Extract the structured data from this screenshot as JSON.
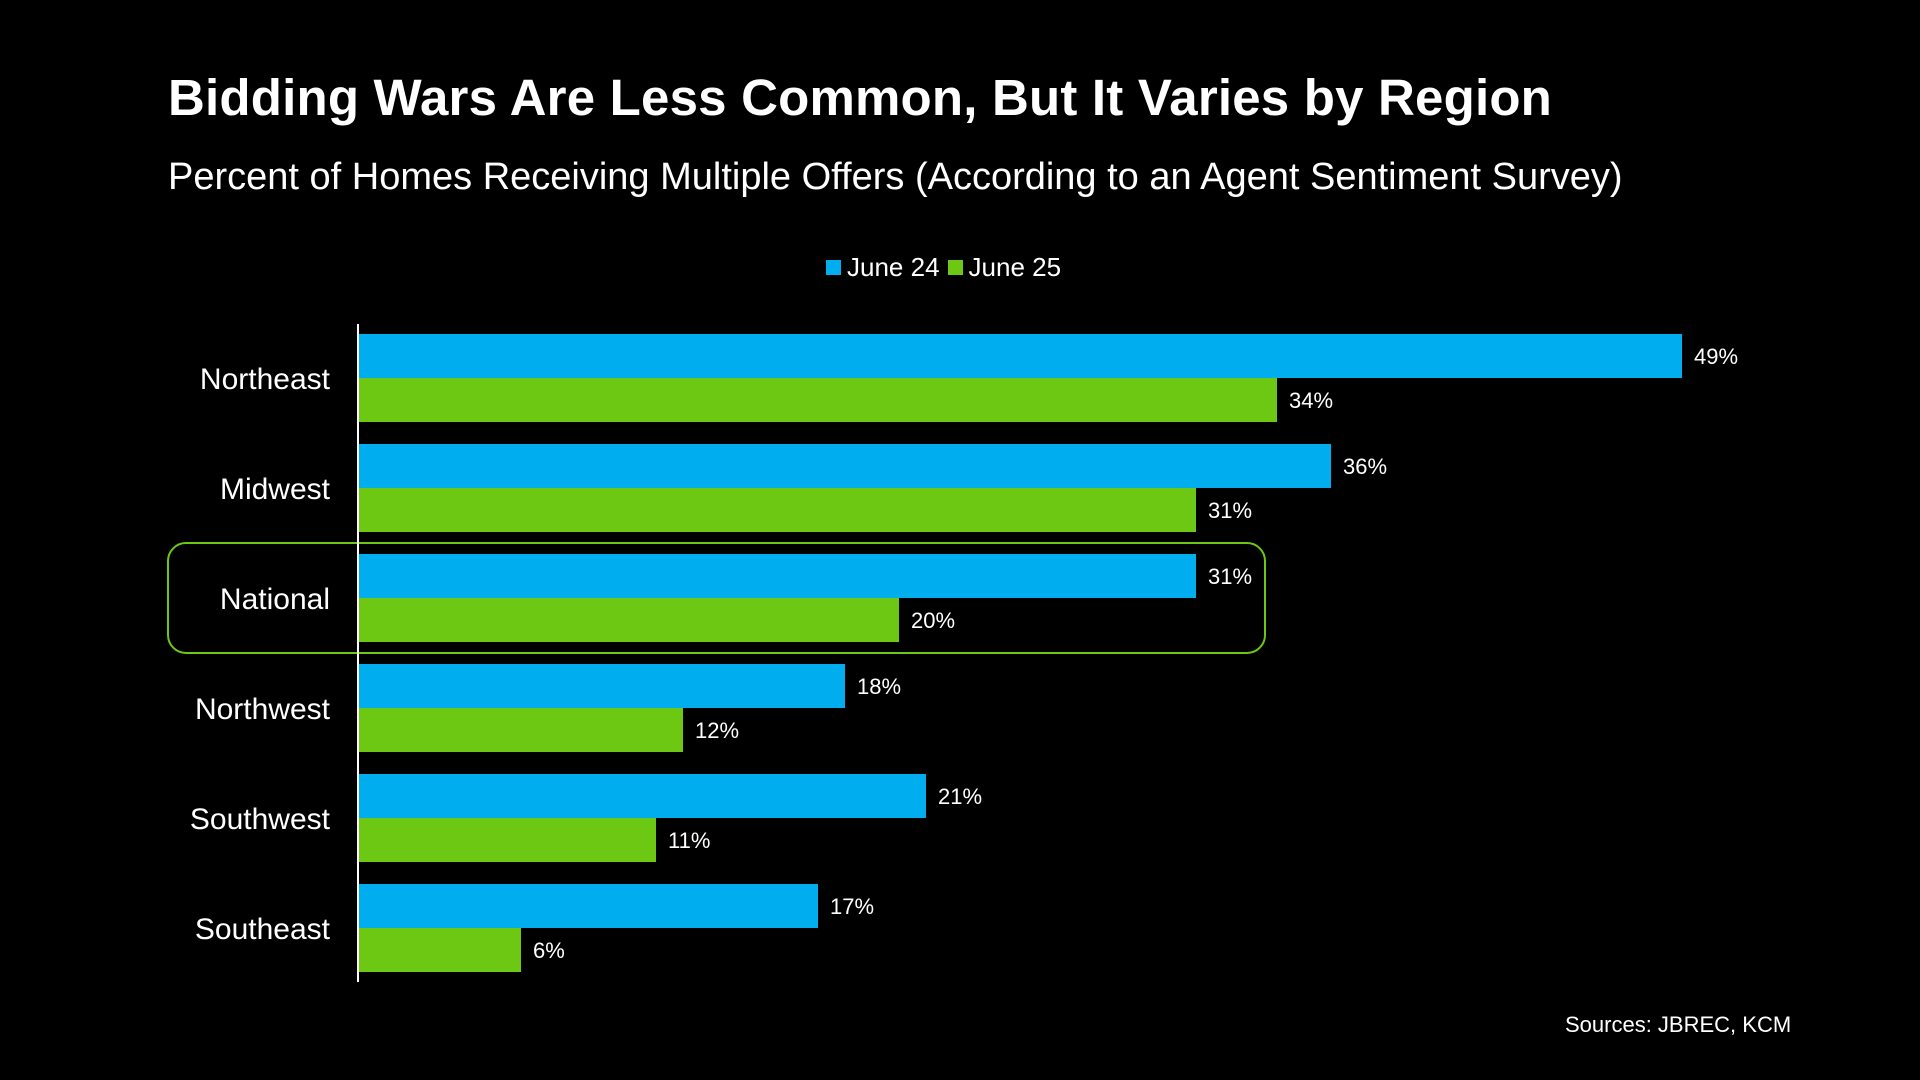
{
  "chart_data": {
    "type": "bar",
    "orientation": "horizontal",
    "title": "Bidding Wars Are Less Common, But It Varies by Region",
    "subtitle": "Percent of Homes Receiving Multiple Offers (According to an Agent Sentiment Survey)",
    "categories": [
      "Northeast",
      "Midwest",
      "National",
      "Northwest",
      "Southwest",
      "Southeast"
    ],
    "series": [
      {
        "name": "June 24",
        "color": "#00AEEF",
        "values": [
          49,
          36,
          31,
          18,
          21,
          17
        ]
      },
      {
        "name": "June 25",
        "color": "#6CC812",
        "values": [
          34,
          31,
          20,
          12,
          11,
          6
        ]
      }
    ],
    "value_suffix": "%",
    "xlabel": "",
    "ylabel": "",
    "xlim": [
      0,
      49
    ],
    "grid": false,
    "legend_position": "top-center",
    "highlighted_category": "National",
    "highlight_color": "#6CC812",
    "source": "Sources: JBREC, KCM"
  }
}
